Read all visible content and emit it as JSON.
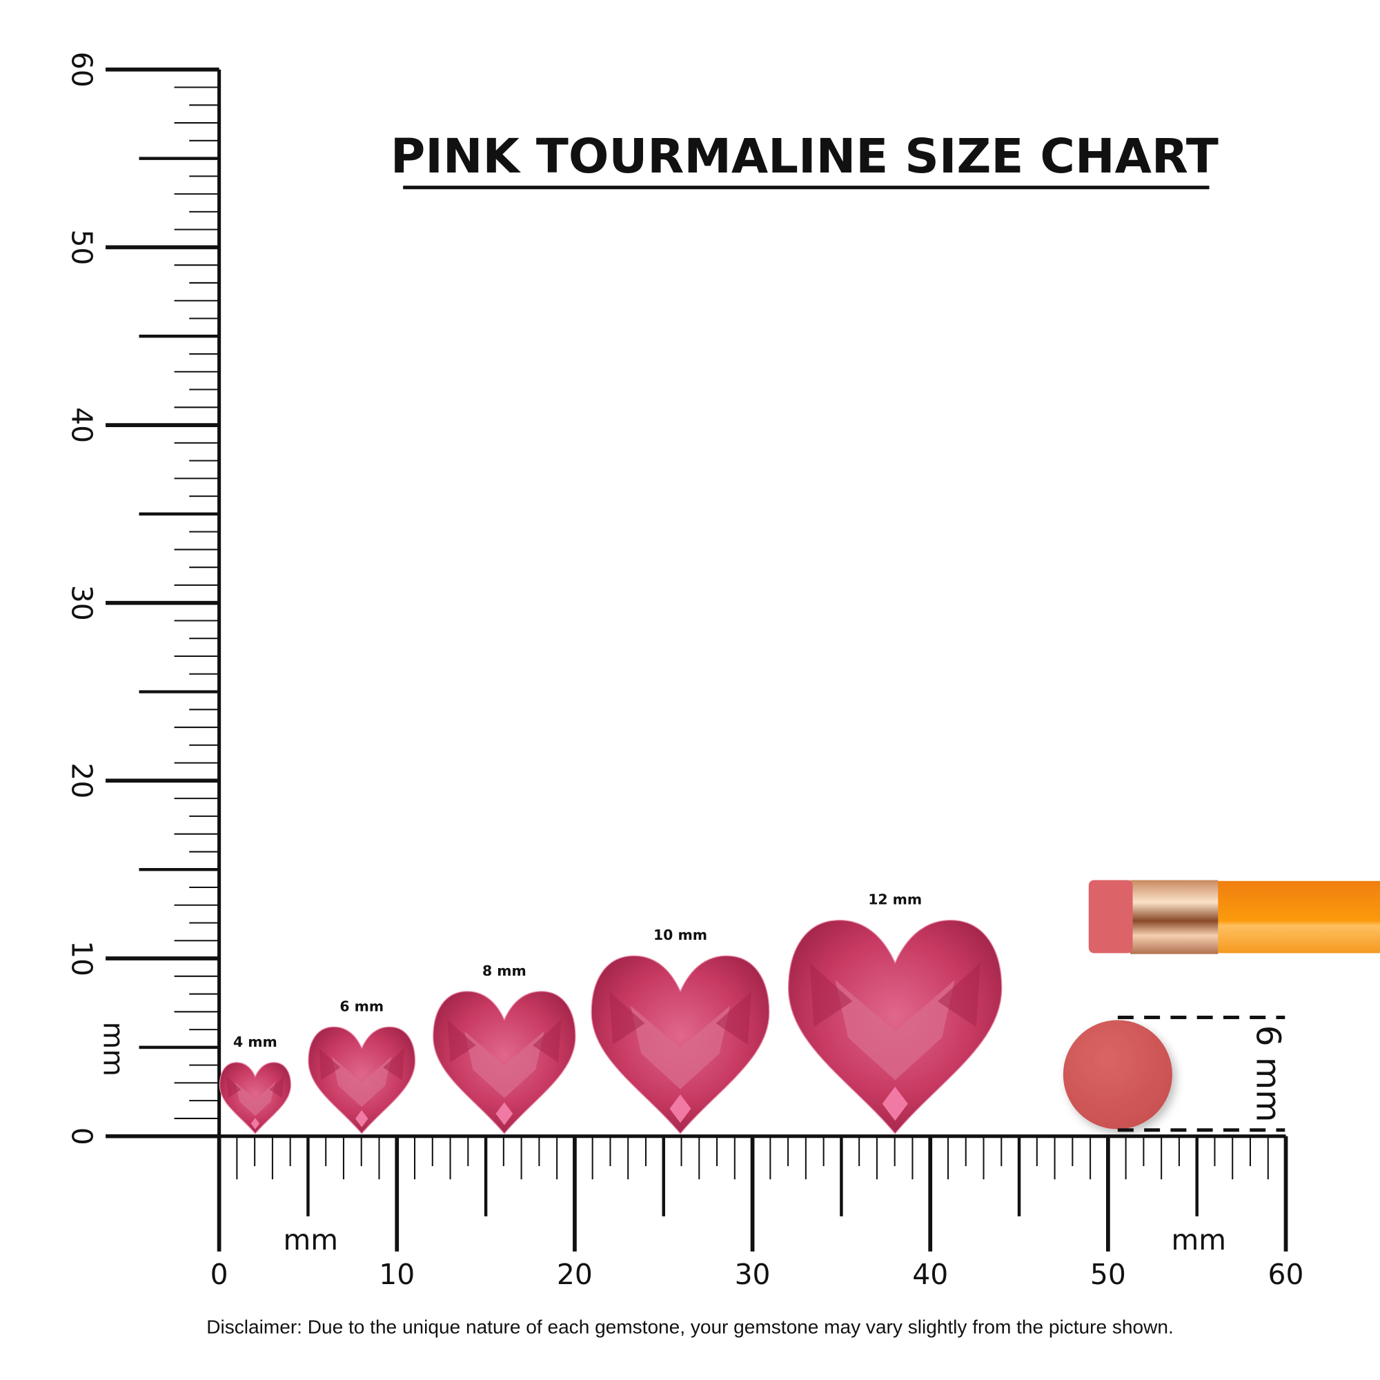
{
  "title": "PINK TOURMALINE SIZE CHART",
  "unit_label": "mm",
  "ruler": {
    "min": 0,
    "max": 60,
    "major_step": 10,
    "tick_labels": [
      "0",
      "10",
      "20",
      "30",
      "40",
      "50",
      "60"
    ]
  },
  "gemstones": [
    {
      "size_mm": 4,
      "label": "4 mm"
    },
    {
      "size_mm": 6,
      "label": "6 mm"
    },
    {
      "size_mm": 8,
      "label": "8 mm"
    },
    {
      "size_mm": 10,
      "label": "10 mm"
    },
    {
      "size_mm": 12,
      "label": "12 mm"
    }
  ],
  "eraser_reference": {
    "size_mm": 6,
    "label": "6 mm"
  },
  "disclaimer": "Disclaimer: Due to the unique nature of each gemstone, your gemstone may vary slightly from the picture shown.",
  "colors": {
    "gem": "#d9456f",
    "gem_dark": "#a8244a",
    "gem_light": "#f07aa3",
    "eraser": "#d45a5a",
    "pencil": "#f7940f",
    "ferrule": "#d9a27a"
  }
}
